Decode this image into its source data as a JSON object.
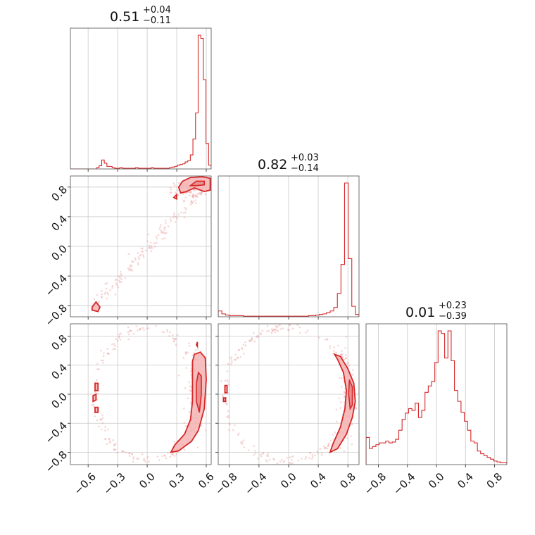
{
  "chart_data": {
    "type": "corner",
    "parameters": [
      {
        "title_value": "0.51",
        "title_plus": "+0.04",
        "title_minus": "−0.11",
        "range": [
          -0.78,
          0.65
        ]
      },
      {
        "title_value": "0.82",
        "title_plus": "+0.03",
        "title_minus": "−0.14",
        "range": [
          -0.95,
          0.95
        ]
      },
      {
        "title_value": "0.01",
        "title_plus": "+0.23",
        "title_minus": "−0.39",
        "range": [
          -0.97,
          0.97
        ]
      }
    ],
    "ticks": {
      "p0": [
        {
          "v": -0.6,
          "label": "−0.6"
        },
        {
          "v": -0.3,
          "label": "−0.3"
        },
        {
          "v": 0.0,
          "label": "0.0"
        },
        {
          "v": 0.3,
          "label": "0.3"
        },
        {
          "v": 0.6,
          "label": "0.6"
        }
      ],
      "p1": [
        {
          "v": -0.8,
          "label": "−0.8"
        },
        {
          "v": -0.4,
          "label": "−0.4"
        },
        {
          "v": 0.0,
          "label": "0.0"
        },
        {
          "v": 0.4,
          "label": "0.4"
        },
        {
          "v": 0.8,
          "label": "0.8"
        }
      ],
      "p2": [
        {
          "v": -0.8,
          "label": "−0.8"
        },
        {
          "v": -0.4,
          "label": "−0.4"
        },
        {
          "v": 0.0,
          "label": "0.0"
        },
        {
          "v": 0.4,
          "label": "0.4"
        },
        {
          "v": 0.8,
          "label": "0.8"
        }
      ]
    },
    "hist_p0": {
      "counts": [
        0,
        0,
        0,
        0,
        0,
        0,
        0,
        0,
        0,
        0,
        2,
        5,
        14,
        9,
        4,
        4,
        2,
        1,
        1,
        2,
        1,
        1,
        1,
        1,
        1,
        2,
        1,
        1,
        1,
        1,
        1,
        2,
        1,
        1,
        1,
        1,
        1,
        1,
        2,
        3,
        4,
        6,
        7,
        8,
        11,
        13,
        22,
        47,
        88,
        210,
        205,
        140,
        40,
        6
      ]
    },
    "hist_p1": {
      "counts": [
        10,
        5,
        3,
        2,
        2,
        2,
        2,
        1,
        1,
        1,
        1,
        1,
        1,
        1,
        1,
        1,
        1,
        1,
        1,
        1,
        1,
        1,
        1,
        1,
        1,
        2,
        2,
        3,
        4,
        5,
        7,
        10,
        16,
        40,
        90,
        230,
        100,
        18,
        4
      ]
    },
    "hist_p2": {
      "counts": [
        30,
        18,
        20,
        22,
        24,
        24,
        26,
        24,
        25,
        28,
        38,
        50,
        57,
        62,
        60,
        68,
        52,
        60,
        80,
        87,
        92,
        113,
        148,
        145,
        118,
        148,
        115,
        82,
        70,
        58,
        48,
        38,
        26,
        24,
        15,
        12,
        10,
        8,
        6,
        4,
        3,
        2,
        2
      ]
    },
    "grid": true,
    "color": "#d62728"
  }
}
